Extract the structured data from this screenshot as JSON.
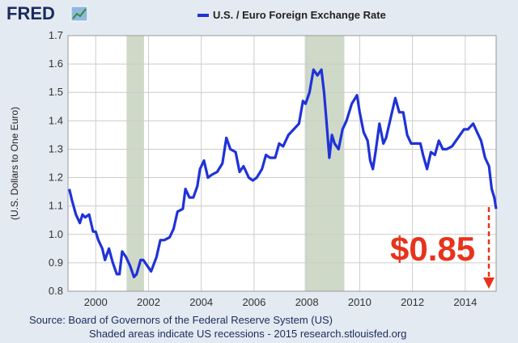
{
  "brand": "FRED",
  "chart_data": {
    "type": "line",
    "title": "U.S. / Euro Foreign Exchange Rate",
    "ylabel": "(U.S. Dollars to One Euro)",
    "annotation": "$0.85",
    "source": "Source: Board of Governors of the Federal Reserve System (US)",
    "note": "Shaded areas indicate US recessions - 2015 research.stlouisfed.org",
    "xlim": [
      1998.95,
      2015.17
    ],
    "xticks": [
      2000,
      2002,
      2004,
      2006,
      2008,
      2010,
      2012,
      2014
    ],
    "ylim": [
      0.8,
      1.7
    ],
    "yticks": [
      0.8,
      0.9,
      {
        "value": 1,
        "label": "1.0"
      },
      1.1,
      1.2,
      1.3,
      1.4,
      1.5,
      1.6,
      1.7
    ],
    "grid": true,
    "recessions": [
      [
        2001.17,
        2001.83
      ],
      [
        2007.92,
        2009.42
      ]
    ],
    "recession_color": "#cfd9c8",
    "x": [
      1999.0,
      1999.1,
      1999.25,
      1999.4,
      1999.5,
      1999.6,
      1999.75,
      1999.9,
      2000.0,
      2000.1,
      2000.25,
      2000.35,
      2000.5,
      2000.65,
      2000.8,
      2000.9,
      2001.0,
      2001.15,
      2001.3,
      2001.45,
      2001.55,
      2001.7,
      2001.8,
      2001.95,
      2002.1,
      2002.3,
      2002.45,
      2002.6,
      2002.8,
      2002.95,
      2003.1,
      2003.3,
      2003.4,
      2003.55,
      2003.7,
      2003.85,
      2003.95,
      2004.1,
      2004.25,
      2004.4,
      2004.6,
      2004.8,
      2004.95,
      2005.1,
      2005.3,
      2005.45,
      2005.6,
      2005.8,
      2005.95,
      2006.1,
      2006.3,
      2006.45,
      2006.6,
      2006.8,
      2006.95,
      2007.1,
      2007.3,
      2007.5,
      2007.7,
      2007.85,
      2007.95,
      2008.1,
      2008.25,
      2008.4,
      2008.55,
      2008.65,
      2008.75,
      2008.85,
      2008.95,
      2009.05,
      2009.2,
      2009.35,
      2009.5,
      2009.7,
      2009.9,
      2010.0,
      2010.15,
      2010.3,
      2010.4,
      2010.5,
      2010.6,
      2010.75,
      2010.9,
      2011.0,
      2011.2,
      2011.35,
      2011.5,
      2011.65,
      2011.8,
      2011.95,
      2012.1,
      2012.3,
      2012.4,
      2012.55,
      2012.7,
      2012.85,
      2013.0,
      2013.15,
      2013.3,
      2013.5,
      2013.65,
      2013.8,
      2013.95,
      2014.1,
      2014.3,
      2014.45,
      2014.6,
      2014.75,
      2014.9,
      2015.0,
      2015.1,
      2015.17
    ],
    "series": [
      {
        "name": "U.S. / Euro Foreign Exchange Rate",
        "color": "#1f32d8",
        "values": [
          1.16,
          1.12,
          1.07,
          1.04,
          1.07,
          1.06,
          1.07,
          1.01,
          1.01,
          0.98,
          0.95,
          0.91,
          0.95,
          0.9,
          0.86,
          0.86,
          0.94,
          0.92,
          0.89,
          0.85,
          0.86,
          0.91,
          0.91,
          0.89,
          0.87,
          0.92,
          0.98,
          0.98,
          0.99,
          1.02,
          1.08,
          1.09,
          1.16,
          1.13,
          1.13,
          1.17,
          1.23,
          1.26,
          1.2,
          1.21,
          1.22,
          1.25,
          1.34,
          1.3,
          1.29,
          1.22,
          1.24,
          1.2,
          1.19,
          1.2,
          1.23,
          1.28,
          1.27,
          1.27,
          1.32,
          1.31,
          1.35,
          1.37,
          1.39,
          1.47,
          1.46,
          1.5,
          1.58,
          1.56,
          1.58,
          1.5,
          1.39,
          1.27,
          1.35,
          1.32,
          1.3,
          1.37,
          1.4,
          1.46,
          1.49,
          1.43,
          1.36,
          1.33,
          1.26,
          1.23,
          1.29,
          1.39,
          1.32,
          1.34,
          1.42,
          1.48,
          1.43,
          1.43,
          1.35,
          1.32,
          1.32,
          1.32,
          1.28,
          1.23,
          1.29,
          1.28,
          1.33,
          1.3,
          1.3,
          1.31,
          1.33,
          1.35,
          1.37,
          1.37,
          1.39,
          1.36,
          1.33,
          1.27,
          1.24,
          1.16,
          1.13,
          1.09
        ]
      }
    ]
  }
}
